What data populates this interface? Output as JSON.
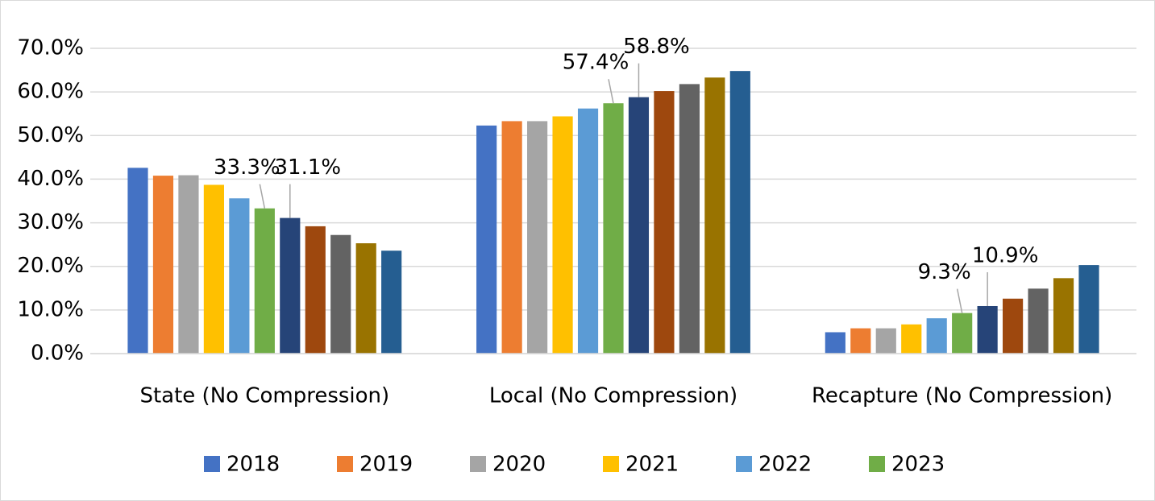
{
  "chart_data": {
    "type": "bar",
    "categories": [
      "State (No Compression)",
      "Local (No Compression)",
      "Recapture (No Compression)"
    ],
    "ylim": [
      0,
      70
    ],
    "yticks": [
      {
        "value": 0,
        "label": "0.0%"
      },
      {
        "value": 10,
        "label": "10.0%"
      },
      {
        "value": 20,
        "label": "20.0%"
      },
      {
        "value": 30,
        "label": "30.0%"
      },
      {
        "value": 40,
        "label": "40.0%"
      },
      {
        "value": 50,
        "label": "50.0%"
      },
      {
        "value": 60,
        "label": "60.0%"
      },
      {
        "value": 70,
        "label": "70.0%"
      }
    ],
    "grid": true,
    "legend": "bottom",
    "series": [
      {
        "name": "2018",
        "color": "#4472c4",
        "values": [
          42.6,
          52.3,
          4.9
        ]
      },
      {
        "name": "2019",
        "color": "#ed7d31",
        "values": [
          40.8,
          53.3,
          5.8
        ]
      },
      {
        "name": "2020",
        "color": "#a5a5a5",
        "values": [
          40.9,
          53.3,
          5.8
        ]
      },
      {
        "name": "2021",
        "color": "#ffc000",
        "values": [
          38.7,
          54.4,
          6.7
        ]
      },
      {
        "name": "2022",
        "color": "#5b9bd5",
        "values": [
          35.6,
          56.2,
          8.1
        ]
      },
      {
        "name": "2023",
        "color": "#70ad47",
        "values": [
          33.3,
          57.4,
          9.3
        ],
        "value_labels": [
          "33.3%",
          "57.4%",
          "9.3%"
        ]
      },
      {
        "color": "#264478",
        "values": [
          31.1,
          58.8,
          10.9
        ],
        "value_labels": [
          "31.1%",
          "58.8%",
          "10.9%"
        ]
      },
      {
        "color": "#9e480e",
        "values": [
          29.2,
          60.2,
          12.6
        ]
      },
      {
        "color": "#636363",
        "values": [
          27.2,
          61.8,
          14.9
        ]
      },
      {
        "color": "#997300",
        "values": [
          25.3,
          63.3,
          17.3
        ]
      },
      {
        "color": "#255e91",
        "values": [
          23.6,
          64.8,
          20.3
        ]
      }
    ]
  }
}
